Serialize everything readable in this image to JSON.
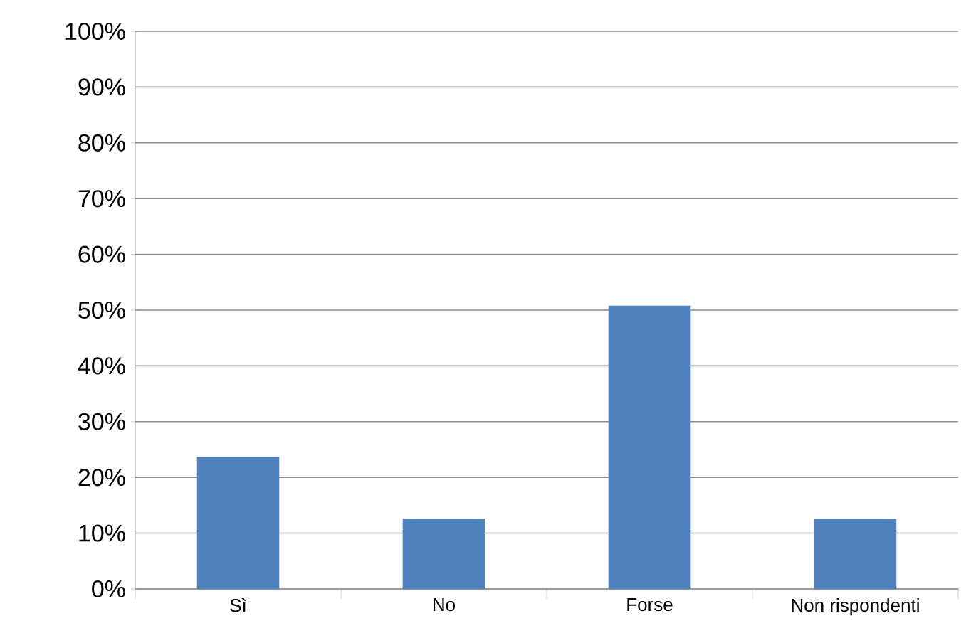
{
  "chart_data": {
    "type": "bar",
    "categories": [
      "Sì",
      "No",
      "Forse",
      "Non rispondenti"
    ],
    "values": [
      23.7,
      12.6,
      50.8,
      12.6
    ],
    "color": "#4f81bd",
    "ylim": [
      0,
      100
    ],
    "yticks": [
      {
        "value": 0,
        "label": "0%"
      },
      {
        "value": 10,
        "label": "10%"
      },
      {
        "value": 20,
        "label": "20%"
      },
      {
        "value": 30,
        "label": "30%"
      },
      {
        "value": 40,
        "label": "40%"
      },
      {
        "value": 50,
        "label": "50%"
      },
      {
        "value": 60,
        "label": "60%"
      },
      {
        "value": 70,
        "label": "70%"
      },
      {
        "value": 80,
        "label": "80%"
      },
      {
        "value": 90,
        "label": "90%"
      },
      {
        "value": 100,
        "label": "100%"
      }
    ],
    "grid": "y"
  }
}
